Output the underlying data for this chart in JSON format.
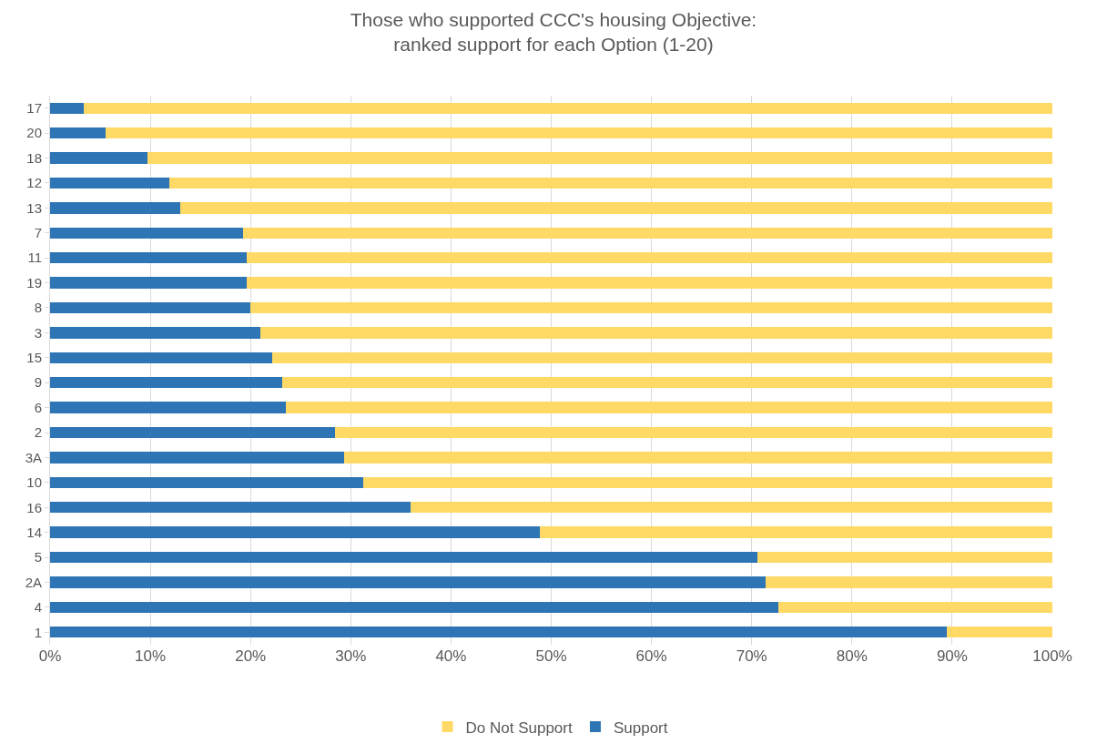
{
  "chart_data": {
    "type": "bar",
    "orientation": "horizontal",
    "stacked": true,
    "title": "Those who supported CCC's housing Objective:\nranked support for each Option (1-20)",
    "categories": [
      "17",
      "20",
      "18",
      "12",
      "13",
      "7",
      "11",
      "19",
      "8",
      "3",
      "15",
      "9",
      "6",
      "2",
      "3A",
      "10",
      "16",
      "14",
      "5",
      "2A",
      "4",
      "1"
    ],
    "series": [
      {
        "name": "Support",
        "color": "#2e75b6",
        "values": [
          3.4,
          5.5,
          9.7,
          11.9,
          13.0,
          19.3,
          19.6,
          19.6,
          20.0,
          21.0,
          22.2,
          23.2,
          23.5,
          28.4,
          29.3,
          31.2,
          36.0,
          48.9,
          70.6,
          71.4,
          72.7,
          89.5
        ]
      },
      {
        "name": "Do Not Support",
        "color": "#ffd966",
        "values": [
          96.6,
          94.5,
          90.3,
          88.1,
          87.0,
          80.7,
          80.4,
          80.4,
          80.0,
          79.0,
          77.8,
          76.8,
          76.5,
          71.6,
          70.7,
          68.8,
          64.0,
          51.1,
          29.4,
          28.6,
          27.3,
          10.5
        ]
      }
    ],
    "xlim": [
      0,
      100
    ],
    "xticks": [
      {
        "value": 0,
        "label": "0%"
      },
      {
        "value": 10,
        "label": "10%"
      },
      {
        "value": 20,
        "label": "20%"
      },
      {
        "value": 30,
        "label": "30%"
      },
      {
        "value": 40,
        "label": "40%"
      },
      {
        "value": 50,
        "label": "50%"
      },
      {
        "value": 60,
        "label": "60%"
      },
      {
        "value": 70,
        "label": "70%"
      },
      {
        "value": 80,
        "label": "80%"
      },
      {
        "value": 90,
        "label": "90%"
      },
      {
        "value": 100,
        "label": "100%"
      }
    ],
    "grid": "x",
    "legend": "bottom"
  }
}
